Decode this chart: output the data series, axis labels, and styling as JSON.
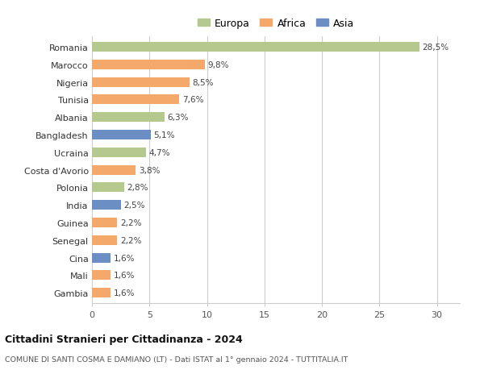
{
  "countries": [
    "Romania",
    "Marocco",
    "Nigeria",
    "Tunisia",
    "Albania",
    "Bangladesh",
    "Ucraina",
    "Costa d'Avorio",
    "Polonia",
    "India",
    "Guinea",
    "Senegal",
    "Cina",
    "Mali",
    "Gambia"
  ],
  "values": [
    28.5,
    9.8,
    8.5,
    7.6,
    6.3,
    5.1,
    4.7,
    3.8,
    2.8,
    2.5,
    2.2,
    2.2,
    1.6,
    1.6,
    1.6
  ],
  "labels": [
    "28,5%",
    "9,8%",
    "8,5%",
    "7,6%",
    "6,3%",
    "5,1%",
    "4,7%",
    "3,8%",
    "2,8%",
    "2,5%",
    "2,2%",
    "2,2%",
    "1,6%",
    "1,6%",
    "1,6%"
  ],
  "colors": [
    "#b5c98e",
    "#f4a96a",
    "#f4a96a",
    "#f4a96a",
    "#b5c98e",
    "#6b8ec4",
    "#b5c98e",
    "#f4a96a",
    "#b5c98e",
    "#6b8ec4",
    "#f4a96a",
    "#f4a96a",
    "#6b8ec4",
    "#f4a96a",
    "#f4a96a"
  ],
  "legend": {
    "Europa": "#b5c98e",
    "Africa": "#f4a96a",
    "Asia": "#6b8ec4"
  },
  "title1": "Cittadini Stranieri per Cittadinanza - 2024",
  "title2": "COMUNE DI SANTI COSMA E DAMIANO (LT) - Dati ISTAT al 1° gennaio 2024 - TUTTITALIA.IT",
  "xlim": [
    0,
    32
  ],
  "xticks": [
    0,
    5,
    10,
    15,
    20,
    25,
    30
  ],
  "background_color": "#ffffff",
  "grid_color": "#cccccc",
  "bar_height": 0.55
}
